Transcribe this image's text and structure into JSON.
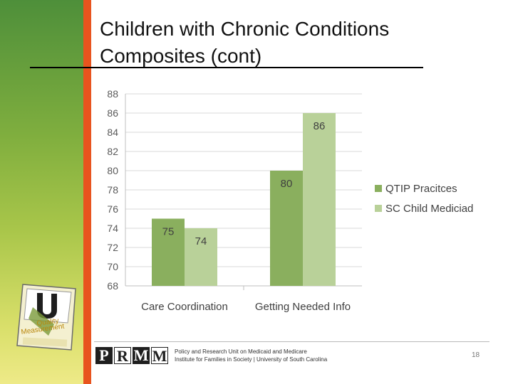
{
  "slide": {
    "title_line1": "Children with Chronic Conditions",
    "title_line2": "Composites (cont)",
    "page_number": "18"
  },
  "footer": {
    "logo_letters": [
      "P",
      "R",
      "M",
      "M"
    ],
    "line1": "Policy and Research Unit on Medicaid and Medicare",
    "line2": "Institute for Families in Society | University of South Carolina"
  },
  "side_logo": {
    "text_line1": "Quality",
    "text_line2": "Measurement"
  },
  "colors": {
    "series1": "#8aaf5e",
    "series2": "#b9d199",
    "grid": "#d9d9d9",
    "axis_text": "#595959",
    "accent_orange": "#e8541e"
  },
  "chart_data": {
    "type": "bar",
    "categories": [
      "Care Coordination",
      "Getting Needed Info"
    ],
    "series": [
      {
        "name": "QTIP Pracitces",
        "values": [
          75,
          80
        ]
      },
      {
        "name": "SC Child Mediciad",
        "values": [
          74,
          86
        ]
      }
    ],
    "ylim": [
      68,
      88
    ],
    "yticks": [
      68,
      70,
      72,
      74,
      76,
      78,
      80,
      82,
      84,
      86,
      88
    ],
    "grid": true,
    "legend": "right",
    "title": "",
    "xlabel": "",
    "ylabel": ""
  }
}
